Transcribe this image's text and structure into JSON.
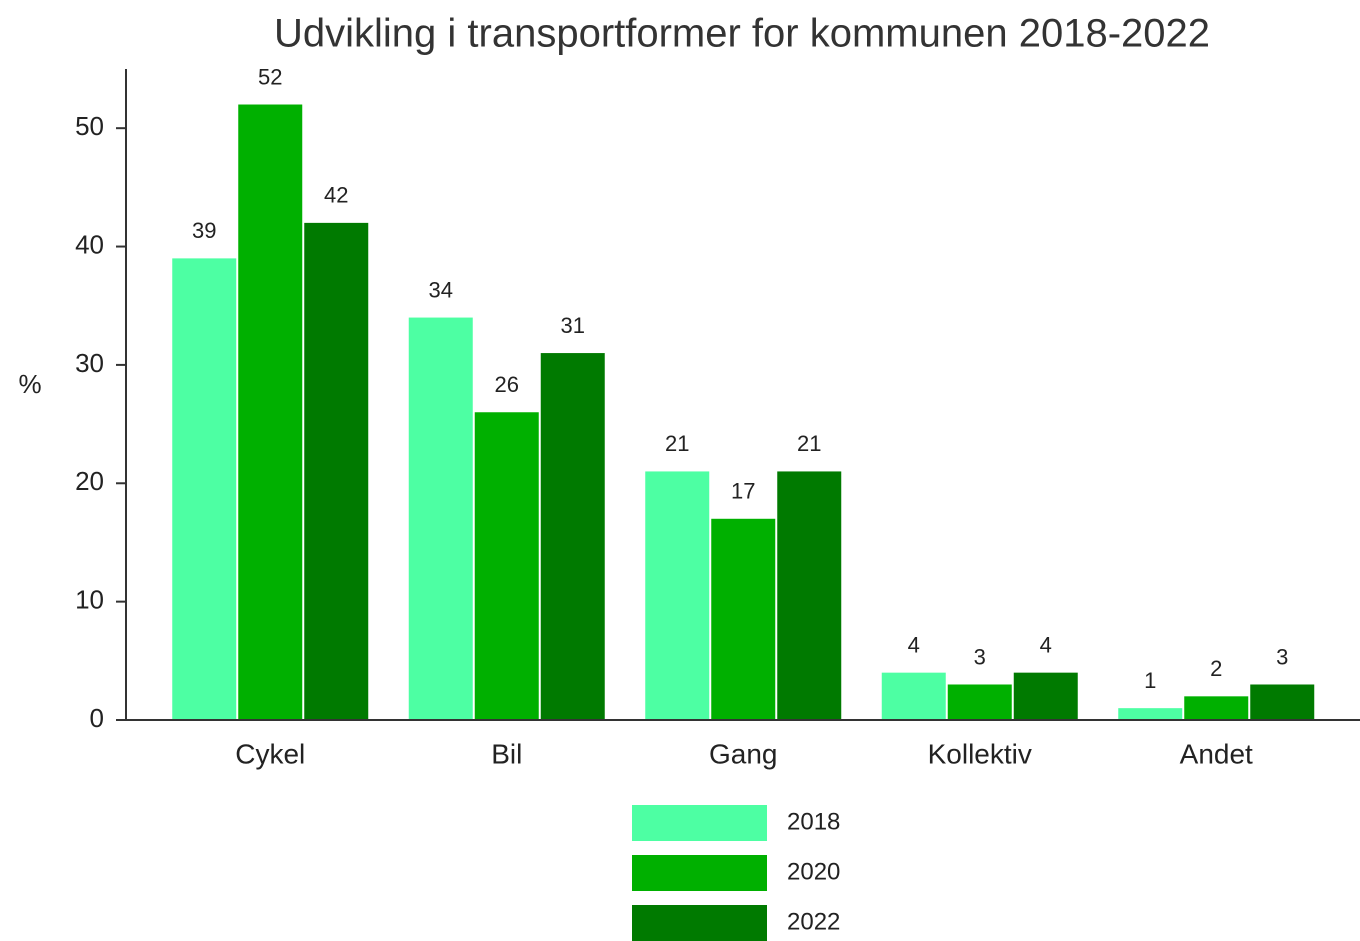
{
  "chart_data": {
    "type": "bar",
    "title": "Udvikling i transportformer for kommunen 2018-2022",
    "y_label": "%",
    "categories": [
      "Cykel",
      "Bil",
      "Gang",
      "Kollektiv",
      "Andet"
    ],
    "series": [
      {
        "name": "2018",
        "color": "#4dffa3",
        "values": [
          39,
          34,
          21,
          4,
          1
        ]
      },
      {
        "name": "2020",
        "color": "#00b000",
        "values": [
          52,
          26,
          17,
          3,
          2
        ]
      },
      {
        "name": "2022",
        "color": "#007a00",
        "values": [
          42,
          31,
          21,
          4,
          3
        ]
      }
    ],
    "ylim": [
      0,
      55
    ],
    "yticks": [
      0,
      10,
      20,
      30,
      40,
      50
    ],
    "grid": false,
    "legend": "bottom"
  }
}
